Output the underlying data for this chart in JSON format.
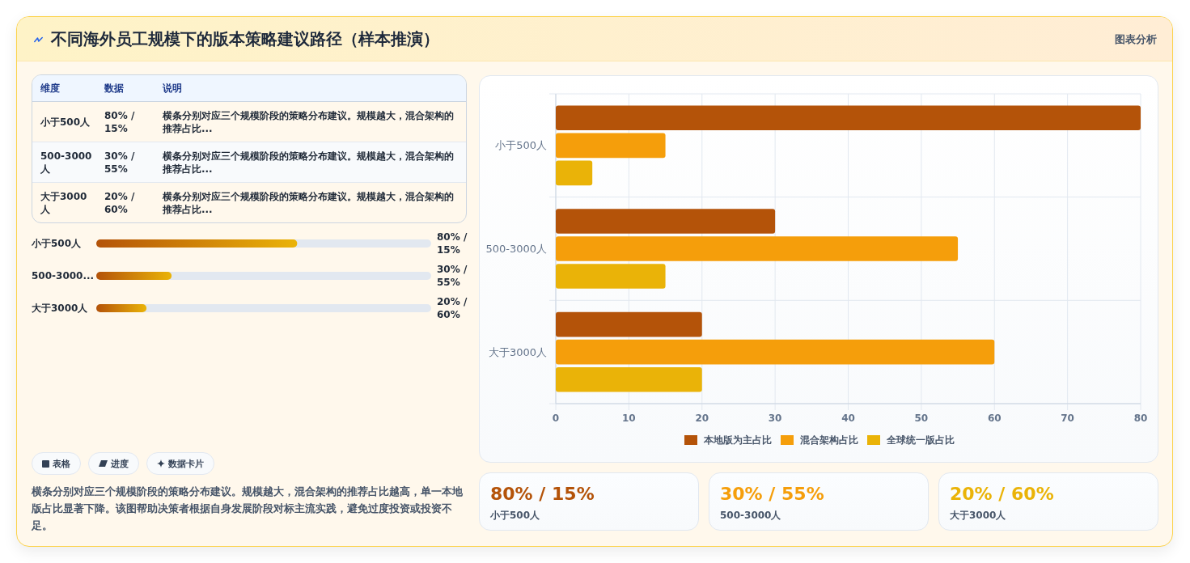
{
  "chart_data": [
    {
      "type": "other",
      "title": "不同海外员工规模下的版本策略建议路径（样本推演）",
      "annotations": [
        "维度",
        "数据",
        "说明",
        "横条分别对应三个规模阶段的策略分布建议。规模越大，混合架构的推荐占比...",
        "横条分别对应三个规模阶段的策略分布建议。规模越大，混合架构的推荐占比...",
        "横条分别对应三个规模阶段的策略分布建议。规模越大，混合架构的推荐占比..."
      ],
      "categories": [
        "小于500人",
        "500-3000人",
        "大于3000人"
      ],
      "value_labels": [
        "80% / 15%",
        "30% / 55%",
        "20% / 60%"
      ]
    },
    {
      "type": "bar",
      "annotations": [
        "图表分析",
        "表格",
        "进度",
        "数据卡片",
        "横条分别对应三个规模阶段的策略分布建议。规模越大，混合架构的推荐占比越高，单一本地版占比显著下降。该图帮助决策者根据自身发展阶段对标主流实践，避免过度投资或投资不足。"
      ],
      "orientation": "horizontal",
      "categories": [
        "小于500人",
        "500-3000人",
        "大于3000人"
      ],
      "series": [
        {
          "name": "本地版为主占比",
          "color": "#b45309",
          "values": [
            80,
            30,
            20
          ]
        },
        {
          "name": "混合架构占比",
          "color": "#f59e0b",
          "values": [
            15,
            55,
            60
          ]
        },
        {
          "name": "全球统一版占比",
          "color": "#eab308",
          "values": [
            5,
            15,
            20
          ]
        }
      ],
      "xlim": [
        0,
        80
      ],
      "xticks": [
        0,
        10,
        20,
        30,
        40,
        50,
        60,
        70,
        80
      ],
      "grid": true,
      "legend": "bottom"
    },
    {
      "type": "bar",
      "orientation": "horizontal",
      "categories": [
        "小于500人",
        "500-3000...",
        "大于3000人"
      ],
      "values": [
        80,
        30,
        20
      ],
      "value_labels": [
        "80% / 15%",
        "30% / 55%",
        "20% / 60%"
      ],
      "color": "#b45309"
    },
    {
      "type": "other",
      "categories": [
        "小于500人",
        "500-3000人",
        "大于3000人"
      ],
      "value_labels": [
        "80% / 15%",
        "30% / 55%",
        "20% / 60%"
      ]
    }
  ]
}
